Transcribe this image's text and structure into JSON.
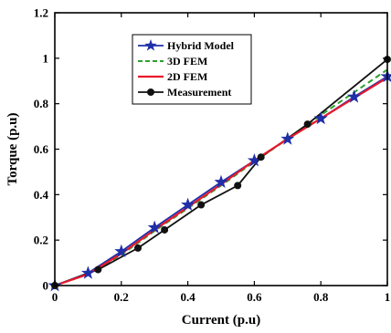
{
  "chart_data": {
    "type": "line",
    "xlabel": "Current (p.u)",
    "ylabel": "Torque (p.u)",
    "xlim": [
      0,
      1
    ],
    "ylim": [
      0,
      1.2
    ],
    "x_ticks": [
      "0",
      "0.2",
      "0.4",
      "0.6",
      "0.8",
      "1"
    ],
    "y_ticks": [
      "0",
      "0.2",
      "0.4",
      "0.6",
      "0.8",
      "1",
      "1.2"
    ],
    "grid": false,
    "legend_position": "top-center",
    "series": [
      {
        "name": "Hybrid Model",
        "color": "#1f2fa8",
        "dash": "solid",
        "marker": "star",
        "x": [
          0,
          0.1,
          0.2,
          0.3,
          0.4,
          0.5,
          0.6,
          0.7,
          0.8,
          0.9,
          1.0
        ],
        "y": [
          0,
          0.055,
          0.15,
          0.255,
          0.355,
          0.455,
          0.55,
          0.645,
          0.735,
          0.83,
          0.92
        ]
      },
      {
        "name": "3D FEM",
        "color": "#2ca02c",
        "dash": "dashed",
        "marker": "none",
        "x": [
          0,
          0.1,
          0.2,
          0.3,
          0.4,
          0.5,
          0.6,
          0.7,
          0.8,
          0.9,
          1.0
        ],
        "y": [
          0,
          0.05,
          0.135,
          0.24,
          0.34,
          0.44,
          0.545,
          0.645,
          0.75,
          0.85,
          0.95
        ]
      },
      {
        "name": "2D FEM",
        "color": "#e8192c",
        "dash": "solid",
        "marker": "none",
        "x": [
          0,
          0.1,
          0.2,
          0.3,
          0.4,
          0.5,
          0.6,
          0.7,
          0.8,
          0.9,
          1.0
        ],
        "y": [
          0,
          0.05,
          0.14,
          0.245,
          0.345,
          0.445,
          0.55,
          0.645,
          0.735,
          0.825,
          0.915
        ]
      },
      {
        "name": "Measurement",
        "color": "#111111",
        "dash": "solid",
        "marker": "circle",
        "x": [
          0,
          0.13,
          0.25,
          0.33,
          0.44,
          0.55,
          0.62,
          0.76,
          1.0
        ],
        "y": [
          0,
          0.07,
          0.165,
          0.245,
          0.355,
          0.44,
          0.565,
          0.71,
          0.995
        ]
      }
    ]
  }
}
